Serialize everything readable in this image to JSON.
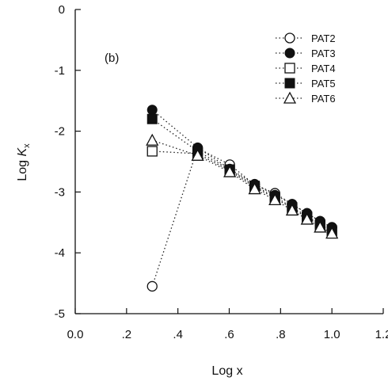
{
  "chart_data": {
    "type": "line",
    "panel_label": "(b)",
    "xlabel": "Log x",
    "ylabel_main": "Log ",
    "ylabel_k": "K",
    "ylabel_sub": "x",
    "xlim": [
      0.0,
      1.2
    ],
    "ylim": [
      -5,
      0
    ],
    "x_ticks": [
      0.0,
      0.2,
      0.4,
      0.6,
      0.8,
      1.0,
      1.2
    ],
    "x_tick_labels": [
      "0.0",
      ".2",
      ".4",
      ".6",
      ".8",
      "1.0",
      "1.2"
    ],
    "y_ticks": [
      0,
      -1,
      -2,
      -3,
      -4,
      -5
    ],
    "y_tick_labels": [
      "0",
      "-1",
      "-2",
      "-3",
      "-4",
      "-5"
    ],
    "grid": false,
    "legend_position": "top-right",
    "line_style": "dotted",
    "series": [
      {
        "name": "PAT2",
        "marker": "open-circle",
        "x": [
          0.3,
          0.477,
          0.602,
          0.699,
          0.778,
          0.845,
          0.903,
          0.954,
          1.0
        ],
        "y": [
          -4.55,
          -2.28,
          -2.55,
          -2.88,
          -3.02,
          -3.2,
          -3.35,
          -3.48,
          -3.58
        ]
      },
      {
        "name": "PAT3",
        "marker": "filled-circle",
        "x": [
          0.3,
          0.477,
          0.602,
          0.699,
          0.778,
          0.845,
          0.903,
          0.954,
          1.0
        ],
        "y": [
          -1.65,
          -2.27,
          -2.62,
          -2.87,
          -3.05,
          -3.2,
          -3.35,
          -3.48,
          -3.58
        ]
      },
      {
        "name": "PAT4",
        "marker": "open-square",
        "x": [
          0.3,
          0.477,
          0.602,
          0.699,
          0.778,
          0.845,
          0.903,
          0.954,
          1.0
        ],
        "y": [
          -2.33,
          -2.37,
          -2.65,
          -2.92,
          -3.1,
          -3.27,
          -3.42,
          -3.55,
          -3.65
        ]
      },
      {
        "name": "PAT5",
        "marker": "filled-square",
        "x": [
          0.3,
          0.477,
          0.602,
          0.699,
          0.778,
          0.845,
          0.903,
          0.954,
          1.0
        ],
        "y": [
          -1.8,
          -2.33,
          -2.63,
          -2.9,
          -3.08,
          -3.25,
          -3.4,
          -3.53,
          -3.63
        ]
      },
      {
        "name": "PAT6",
        "marker": "open-triangle",
        "x": [
          0.3,
          0.477,
          0.602,
          0.699,
          0.778,
          0.845,
          0.903,
          0.954,
          1.0
        ],
        "y": [
          -2.15,
          -2.4,
          -2.67,
          -2.95,
          -3.13,
          -3.3,
          -3.45,
          -3.58,
          -3.68
        ]
      }
    ]
  }
}
